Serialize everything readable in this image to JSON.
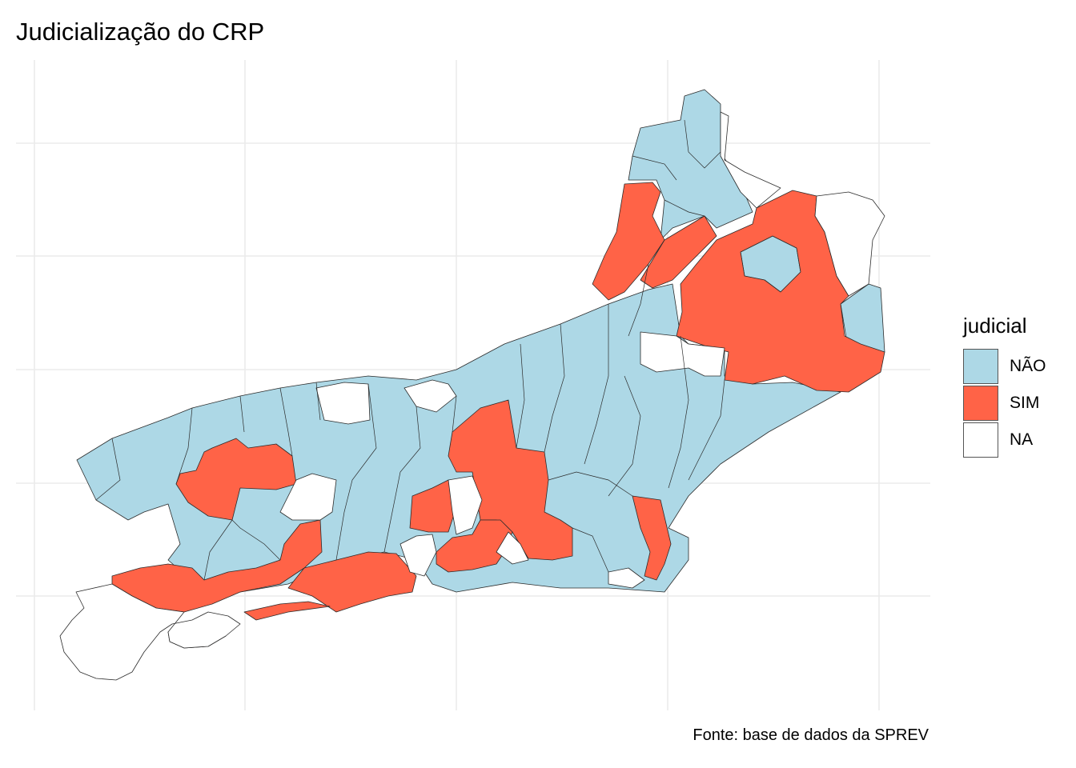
{
  "title": "Judicialização do CRP",
  "caption": "Fonte: base de dados da SPREV",
  "legend": {
    "title": "judicial",
    "items": [
      {
        "key": "NAO",
        "label": "NÃO",
        "color": "#add8e6"
      },
      {
        "key": "SIM",
        "label": "SIM",
        "color": "#ff6347"
      },
      {
        "key": "NA",
        "label": "NA",
        "color": "#ffffff"
      }
    ]
  },
  "map": {
    "region": "Rio de Janeiro",
    "grid": true,
    "category_colors": {
      "NAO": "#add8e6",
      "SIM": "#ff6347",
      "NA": "#ffffff"
    }
  }
}
